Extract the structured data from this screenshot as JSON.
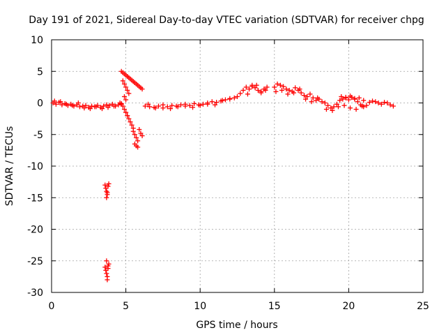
{
  "chart_data": {
    "type": "scatter",
    "title": "Day 191 of 2021, Sidereal Day-to-day VTEC variation (SDTVAR) for receiver chpg",
    "xlabel": "GPS time / hours",
    "ylabel": "SDTVAR / TECUs",
    "xlim": [
      0,
      25
    ],
    "ylim": [
      -30,
      10
    ],
    "x_ticks": [
      0,
      5,
      10,
      15,
      20,
      25
    ],
    "y_ticks": [
      10,
      5,
      0,
      -5,
      -10,
      -15,
      -20,
      -25,
      -30
    ],
    "x_tick_labels": [
      "0",
      "5",
      "10",
      "15",
      "20",
      "25"
    ],
    "y_tick_labels": [
      "10",
      "5",
      "0",
      "-5",
      "-10",
      "-15",
      "-20",
      "-25",
      "-30"
    ],
    "grid": true,
    "marker": "+",
    "series_color": "#ff0000",
    "series": [
      {
        "name": "SDTVAR",
        "x": [
          0.1,
          0.3,
          0.5,
          0.7,
          0.9,
          1.1,
          1.3,
          1.5,
          1.7,
          1.9,
          2.1,
          2.3,
          2.5,
          2.7,
          2.9,
          3.1,
          3.3,
          3.5,
          3.7,
          3.9,
          4.1,
          4.3,
          4.5,
          4.7,
          0.2,
          0.6,
          1.0,
          1.4,
          1.8,
          2.2,
          2.6,
          3.0,
          3.4,
          3.8,
          4.2,
          4.6,
          3.6,
          3.65,
          3.7,
          3.75,
          3.8,
          3.85,
          3.7,
          3.75,
          3.6,
          3.65,
          3.7,
          3.75,
          3.8,
          3.85,
          3.7,
          3.75,
          3.8,
          4.7,
          4.8,
          4.9,
          5.0,
          5.1,
          5.2,
          5.3,
          5.4,
          5.5,
          5.6,
          5.7,
          5.8,
          5.9,
          6.0,
          6.1,
          4.8,
          4.9,
          5.0,
          5.1,
          5.2,
          4.9,
          5.0,
          4.8,
          4.9,
          5.0,
          5.1,
          4.7,
          5.0,
          5.1,
          5.2,
          5.3,
          5.4,
          5.5,
          5.5,
          5.6,
          5.7,
          5.8,
          5.9,
          6.0,
          6.1,
          5.6,
          5.7,
          5.8,
          6.3,
          6.6,
          6.9,
          7.2,
          7.5,
          7.8,
          8.1,
          8.4,
          8.7,
          9.0,
          9.3,
          9.6,
          9.9,
          10.2,
          10.5,
          10.8,
          11.1,
          11.4,
          11.7,
          12.0,
          6.5,
          7.0,
          7.5,
          8.0,
          8.5,
          9.0,
          9.5,
          10.0,
          10.5,
          11.0,
          11.5,
          12.0,
          12.3,
          12.5,
          12.7,
          12.9,
          13.1,
          13.3,
          13.5,
          13.7,
          13.9,
          14.1,
          14.3,
          14.5,
          13.2,
          13.5,
          13.8,
          14.1,
          14.4,
          15.0,
          15.2,
          15.4,
          15.6,
          15.8,
          16.0,
          16.2,
          16.4,
          16.6,
          16.8,
          17.0,
          17.2,
          17.4,
          17.6,
          17.8,
          18.0,
          15.1,
          15.5,
          15.9,
          16.3,
          16.7,
          17.1,
          17.5,
          17.9,
          18.2,
          18.4,
          18.6,
          18.8,
          19.0,
          19.2,
          19.4,
          19.6,
          19.8,
          20.0,
          20.2,
          20.4,
          20.6,
          20.8,
          21.0,
          21.2,
          21.4,
          21.6,
          21.8,
          22.0,
          22.2,
          22.4,
          22.6,
          22.8,
          23.0,
          18.5,
          18.9,
          19.3,
          19.7,
          20.1,
          20.5,
          20.9,
          19.5,
          19.8,
          20.1,
          20.4,
          20.7,
          21.0
        ],
        "y": [
          0.0,
          -0.2,
          0.1,
          -0.3,
          -0.1,
          -0.4,
          -0.2,
          -0.5,
          -0.3,
          -0.6,
          -0.5,
          -0.4,
          -0.7,
          -0.5,
          -0.6,
          -0.4,
          -0.7,
          -0.5,
          -0.3,
          -0.4,
          -0.2,
          -0.5,
          -0.3,
          -0.1,
          0.3,
          0.2,
          -0.2,
          -0.4,
          0.0,
          -0.8,
          -0.9,
          -0.6,
          -0.9,
          -0.7,
          -0.5,
          0.0,
          -13.0,
          -13.5,
          -14.0,
          -14.5,
          -13.2,
          -12.8,
          -15.0,
          -14.2,
          -26.0,
          -26.5,
          -27.0,
          -27.5,
          -26.2,
          -25.5,
          -25.0,
          -28.0,
          -25.8,
          5.0,
          4.8,
          4.6,
          4.4,
          4.2,
          4.0,
          3.8,
          3.6,
          3.4,
          3.2,
          3.0,
          2.8,
          2.6,
          2.4,
          2.2,
          3.5,
          3.0,
          2.5,
          2.0,
          1.5,
          1.0,
          0.5,
          -0.5,
          -1.0,
          -1.5,
          -2.0,
          -0.2,
          -1.5,
          -2.0,
          -2.5,
          -3.0,
          -3.5,
          -4.0,
          -4.5,
          -5.0,
          -5.5,
          -6.0,
          -4.2,
          -4.8,
          -5.2,
          -6.5,
          -6.8,
          -7.0,
          -0.5,
          -0.6,
          -0.7,
          -0.5,
          -0.8,
          -0.6,
          -0.4,
          -0.5,
          -0.3,
          -0.2,
          -0.4,
          -0.1,
          -0.3,
          -0.2,
          0.0,
          0.2,
          0.1,
          0.3,
          0.5,
          0.7,
          -0.2,
          -0.8,
          -0.3,
          -0.9,
          -0.6,
          -0.5,
          -0.7,
          -0.4,
          -0.2,
          -0.3,
          0.4,
          0.6,
          0.8,
          1.0,
          1.5,
          2.0,
          2.5,
          2.2,
          2.8,
          2.4,
          2.0,
          1.8,
          2.2,
          2.5,
          1.4,
          2.6,
          2.8,
          1.6,
          2.0,
          2.5,
          3.0,
          2.8,
          2.6,
          2.2,
          2.0,
          1.8,
          2.4,
          2.0,
          1.6,
          1.2,
          1.0,
          1.4,
          0.8,
          0.4,
          0.6,
          1.8,
          2.0,
          1.4,
          1.6,
          2.2,
          0.6,
          0.2,
          0.8,
          0.2,
          0.0,
          -0.4,
          -0.8,
          -0.6,
          -0.2,
          0.4,
          0.6,
          0.8,
          0.5,
          0.9,
          0.6,
          0.2,
          -0.3,
          -0.6,
          -0.4,
          0.1,
          0.3,
          0.2,
          0.0,
          -0.2,
          0.1,
          0.0,
          -0.3,
          -0.5,
          -1.0,
          -1.2,
          -0.6,
          -0.4,
          -0.8,
          -1.0,
          -0.5,
          1.0,
          0.9,
          1.1,
          0.7,
          0.8,
          0.4
        ]
      }
    ]
  }
}
